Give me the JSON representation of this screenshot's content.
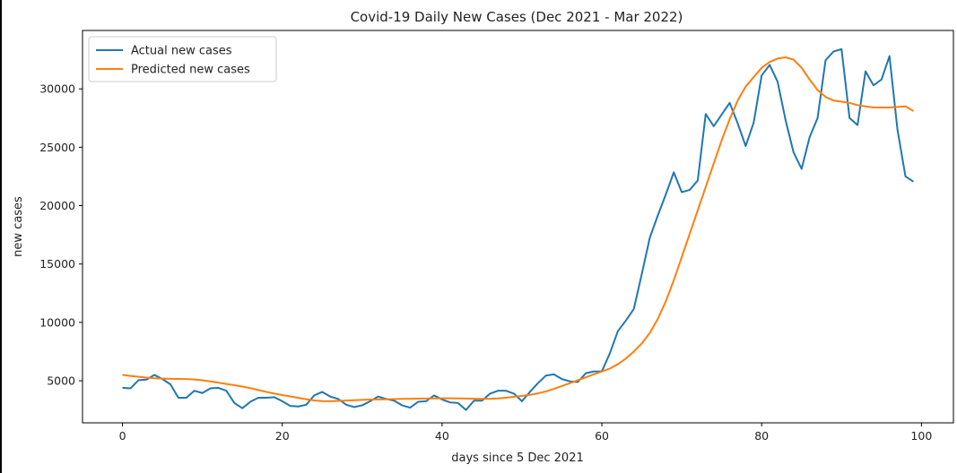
{
  "chart_data": {
    "type": "line",
    "title": "Covid-19 Daily New Cases (Dec 2021 - Mar 2022)",
    "xlabel": "days since 5 Dec 2021",
    "ylabel": "new cases",
    "xlim": [
      -5,
      104
    ],
    "ylim": [
      1400,
      35000
    ],
    "xticks": [
      0,
      20,
      40,
      60,
      80,
      100
    ],
    "yticks": [
      5000,
      10000,
      15000,
      20000,
      25000,
      30000
    ],
    "grid": false,
    "legend_position": "upper-left",
    "x": [
      0,
      1,
      2,
      3,
      4,
      5,
      6,
      7,
      8,
      9,
      10,
      11,
      12,
      13,
      14,
      15,
      16,
      17,
      18,
      19,
      20,
      21,
      22,
      23,
      24,
      25,
      26,
      27,
      28,
      29,
      30,
      31,
      32,
      33,
      34,
      35,
      36,
      37,
      38,
      39,
      40,
      41,
      42,
      43,
      44,
      45,
      46,
      47,
      48,
      49,
      50,
      51,
      52,
      53,
      54,
      55,
      56,
      57,
      58,
      59,
      60,
      61,
      62,
      63,
      64,
      65,
      66,
      67,
      68,
      69,
      70,
      71,
      72,
      73,
      74,
      75,
      76,
      77,
      78,
      79,
      80,
      81,
      82,
      83,
      84,
      85,
      86,
      87,
      88,
      89,
      90,
      91,
      92,
      93,
      94,
      95,
      96,
      97,
      98,
      99
    ],
    "series": [
      {
        "name": "Actual new cases",
        "color": "#1f77b4",
        "values": [
          4400,
          4350,
          5050,
          5100,
          5500,
          5150,
          4700,
          3550,
          3550,
          4150,
          3950,
          4350,
          4400,
          4150,
          3100,
          2650,
          3200,
          3550,
          3550,
          3600,
          3250,
          2850,
          2800,
          2950,
          3750,
          4050,
          3650,
          3450,
          2950,
          2750,
          2900,
          3250,
          3650,
          3450,
          3300,
          2900,
          2700,
          3200,
          3250,
          3750,
          3400,
          3150,
          3100,
          2500,
          3300,
          3300,
          3900,
          4150,
          4150,
          3900,
          3250,
          4050,
          4800,
          5450,
          5550,
          5150,
          4950,
          4900,
          5650,
          5800,
          5800,
          7350,
          9250,
          10150,
          11150,
          14150,
          17250,
          19150,
          20950,
          22850,
          21150,
          21350,
          22150,
          27850,
          26800,
          27800,
          28800,
          27050,
          25100,
          27100,
          31150,
          32050,
          30600,
          27300,
          24550,
          23150,
          25850,
          27500,
          32450,
          33200,
          33400,
          27500,
          26900,
          31500,
          30300,
          30800,
          32800,
          26500,
          22500,
          22050
        ]
      },
      {
        "name": "Predicted new cases",
        "color": "#ff7f0e",
        "values": [
          5500,
          5420,
          5340,
          5270,
          5220,
          5190,
          5170,
          5160,
          5150,
          5110,
          5040,
          4950,
          4840,
          4730,
          4620,
          4510,
          4370,
          4210,
          4050,
          3900,
          3780,
          3660,
          3540,
          3420,
          3320,
          3260,
          3250,
          3280,
          3310,
          3340,
          3370,
          3390,
          3400,
          3410,
          3430,
          3450,
          3460,
          3470,
          3480,
          3490,
          3500,
          3500,
          3490,
          3480,
          3460,
          3450,
          3460,
          3490,
          3550,
          3630,
          3710,
          3800,
          3920,
          4090,
          4310,
          4550,
          4800,
          5050,
          5300,
          5560,
          5800,
          6050,
          6420,
          6900,
          7500,
          8200,
          9100,
          10300,
          11800,
          13600,
          15600,
          17600,
          19600,
          21600,
          23600,
          25600,
          27400,
          29000,
          30200,
          31000,
          31800,
          32300,
          32600,
          32700,
          32500,
          31800,
          30800,
          29900,
          29300,
          29000,
          28900,
          28800,
          28600,
          28500,
          28400,
          28400,
          28400,
          28450,
          28500,
          28100
        ]
      }
    ]
  }
}
